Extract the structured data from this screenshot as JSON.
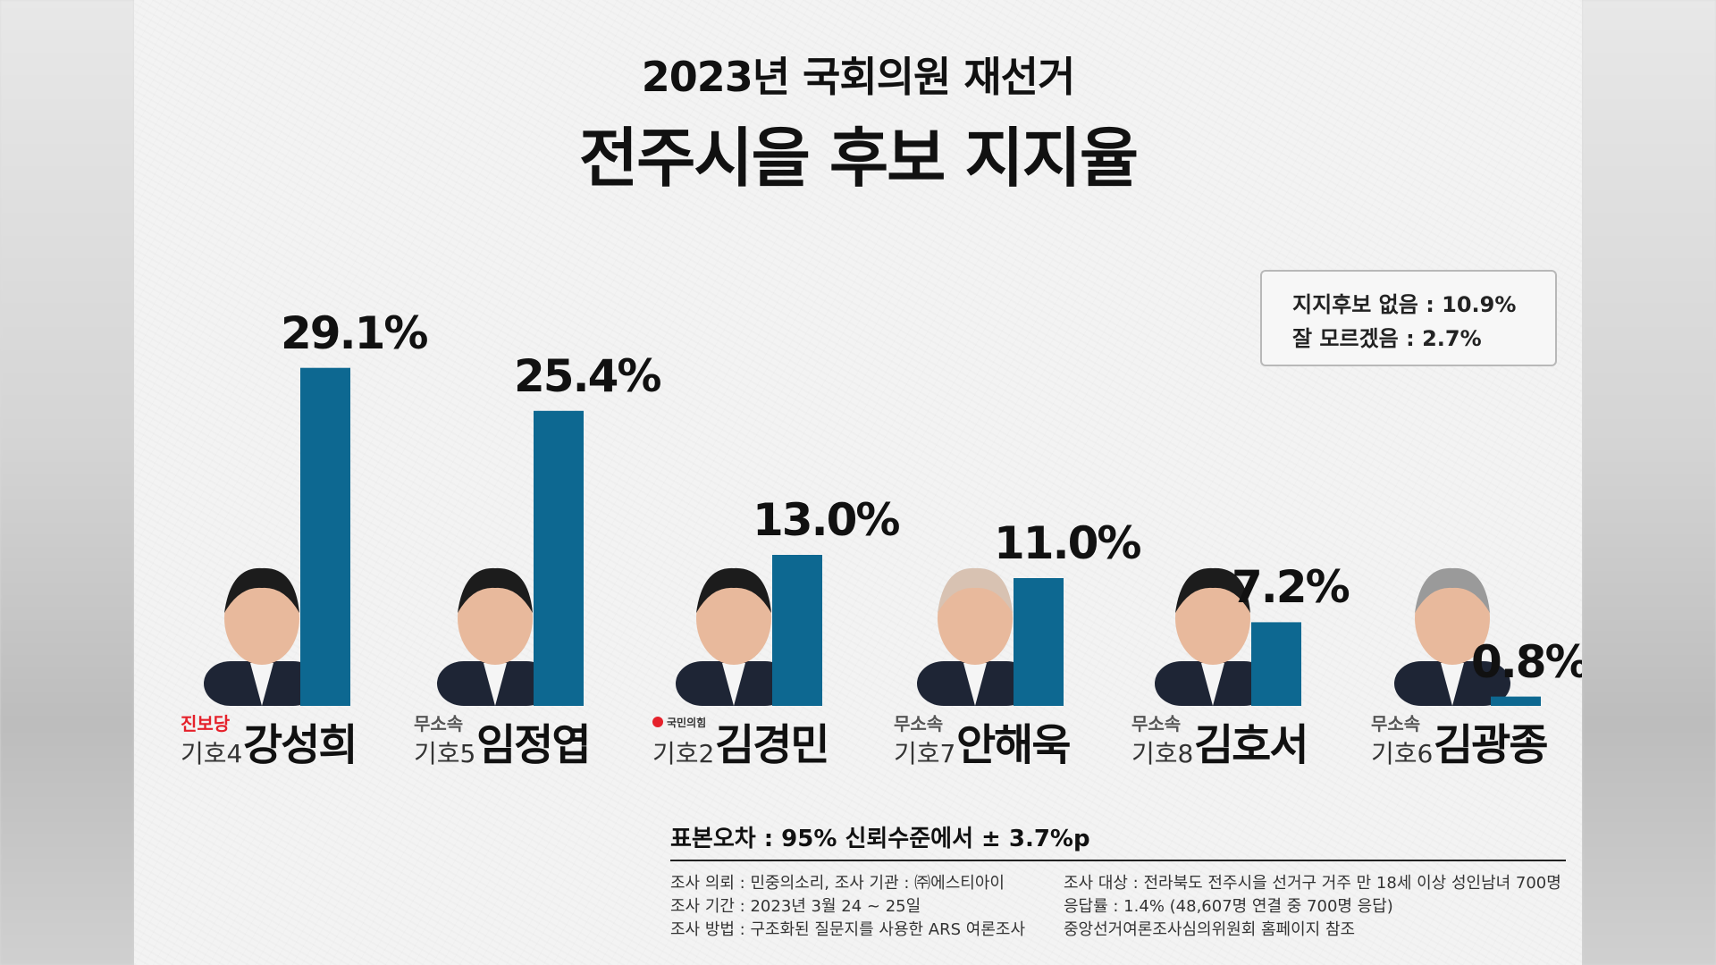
{
  "chart_data": {
    "type": "bar",
    "title": "2023년 국회의원 재선거",
    "subtitle": "전주시을 후보 지지율",
    "categories": [
      "강성희",
      "임정엽",
      "김경민",
      "안해욱",
      "김호서",
      "김광종"
    ],
    "values": [
      29.1,
      25.4,
      13.0,
      11.0,
      7.2,
      0.8
    ],
    "value_labels": [
      "29.1%",
      "25.4%",
      "13.0%",
      "11.0%",
      "7.2%",
      "0.8%"
    ],
    "candidates": [
      {
        "party": "진보당",
        "number": "기호4",
        "name": "강성희"
      },
      {
        "party": "무소속",
        "number": "기호5",
        "name": "임정엽"
      },
      {
        "party": "국민의힘",
        "number": "기호2",
        "name": "김경민"
      },
      {
        "party": "무소속",
        "number": "기호7",
        "name": "안해욱"
      },
      {
        "party": "무소속",
        "number": "기호8",
        "name": "김호서"
      },
      {
        "party": "무소속",
        "number": "기호6",
        "name": "김광종"
      }
    ],
    "bar_color": "#0d6891",
    "ylim": [
      0,
      30
    ],
    "grid": false
  },
  "notes": {
    "no_support": "지지후보 없음 : 10.9%",
    "dont_know": "잘 모르겠음 : 2.7%"
  },
  "footer": {
    "sampling_error": "표본오차 : 95% 신뢰수준에서 ± 3.7%p",
    "left": [
      "조사 의뢰 : 민중의소리,   조사 기관 : ㈜에스티아이",
      "조사 기간 : 2023년 3월 24 ~ 25일",
      "조사 방법 : 구조화된 질문지를 사용한 ARS 여론조사"
    ],
    "right": [
      "조사 대상 : 전라북도 전주시을 선거구 거주 만 18세 이상 성인남녀 700명",
      "응답률 : 1.4% (48,607명 연결 중 700명 응답)",
      "중앙선거여론조사심의위원회 홈페이지 참조"
    ]
  },
  "colors": {
    "bar": "#0d6891",
    "party_red": "#e5212b",
    "suit": "#1e2535"
  }
}
